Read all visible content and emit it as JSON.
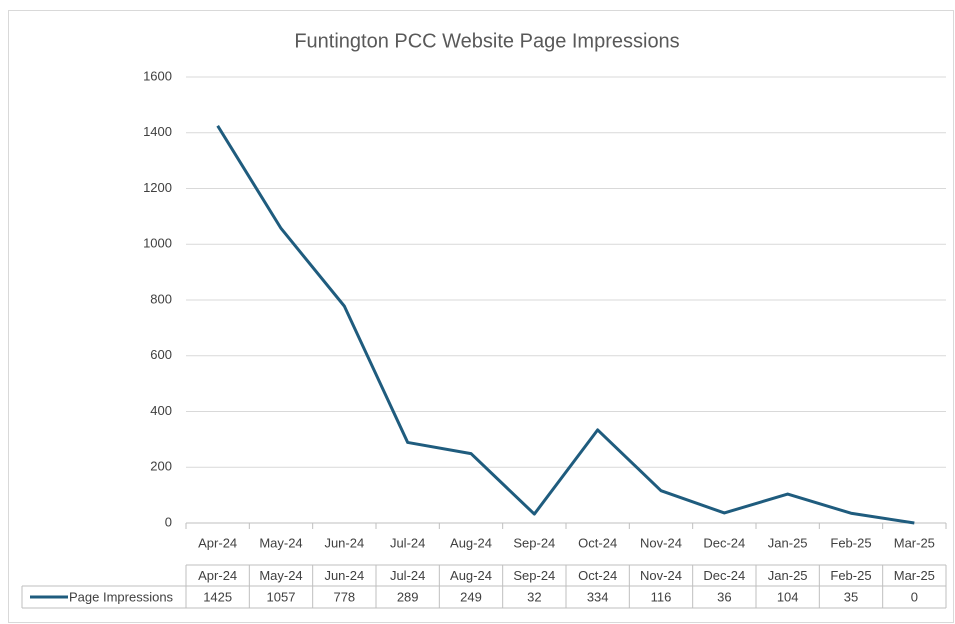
{
  "chart_data": {
    "type": "line",
    "title": "Funtington PCC Website Page Impressions",
    "categories": [
      "Apr-24",
      "May-24",
      "Jun-24",
      "Jul-24",
      "Aug-24",
      "Sep-24",
      "Oct-24",
      "Nov-24",
      "Dec-24",
      "Jan-25",
      "Feb-25",
      "Mar-25"
    ],
    "series": [
      {
        "name": "Page Impressions",
        "color": "#1f5c7e",
        "values": [
          1425,
          1057,
          778,
          289,
          249,
          32,
          334,
          116,
          36,
          104,
          35,
          0
        ]
      }
    ],
    "ylim": [
      0,
      1600
    ],
    "yticks": [
      0,
      200,
      400,
      600,
      800,
      1000,
      1200,
      1400,
      1600
    ],
    "grid": true,
    "data_table": true
  }
}
